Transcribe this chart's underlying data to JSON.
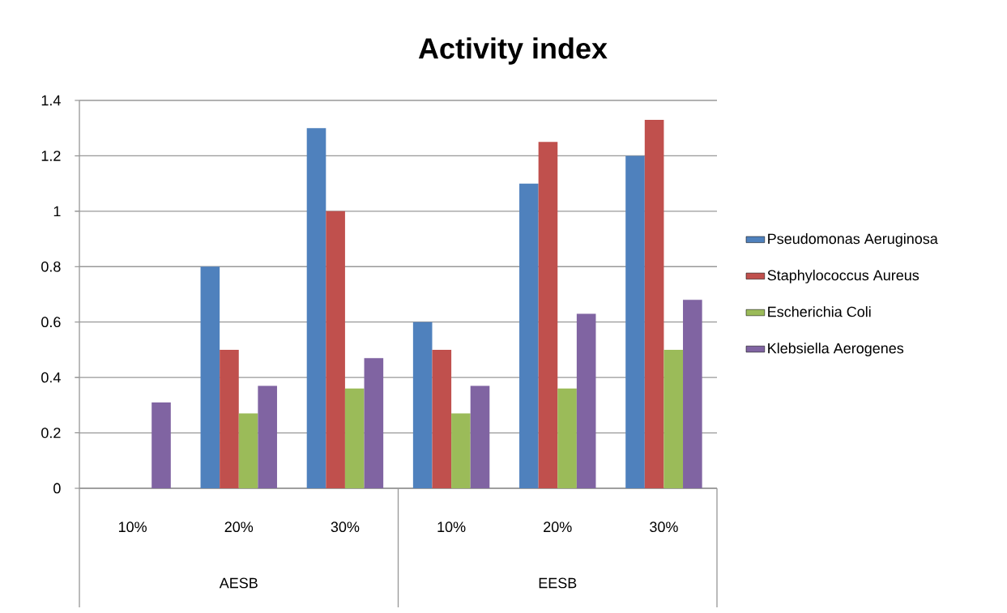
{
  "chart_data": {
    "type": "bar",
    "title": "Activity index",
    "categories": [
      "10%",
      "20%",
      "30%",
      "10%",
      "20%",
      "30%"
    ],
    "annotations": [
      "AESB",
      "EESB"
    ],
    "series": [
      {
        "name": "Pseudomonas Aeruginosa",
        "color": "#4f81bd",
        "values": [
          0,
          0.8,
          1.3,
          0.6,
          1.1,
          1.2
        ]
      },
      {
        "name": "Staphylococcus Aureus",
        "color": "#c0504d",
        "values": [
          0,
          0.5,
          1.0,
          0.5,
          1.25,
          1.33
        ]
      },
      {
        "name": "Escherichia Coli",
        "color": "#9bbb59",
        "values": [
          0,
          0.27,
          0.36,
          0.27,
          0.36,
          0.5
        ]
      },
      {
        "name": "Klebsiella Aerogenes",
        "color": "#8064a2",
        "values": [
          0.31,
          0.37,
          0.47,
          0.37,
          0.63,
          0.68
        ]
      }
    ],
    "ylim": [
      0,
      1.4
    ],
    "yticks": [
      0,
      0.2,
      0.4,
      0.6,
      0.8,
      1,
      1.2,
      1.4
    ],
    "grid": "y",
    "legend": "right"
  }
}
